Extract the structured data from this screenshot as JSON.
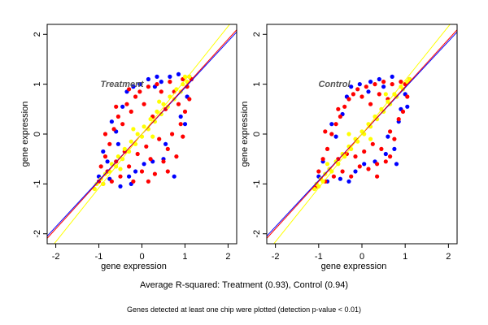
{
  "chart_data": [
    {
      "type": "scatter",
      "title": "Treatment",
      "xlabel": "gene expression",
      "ylabel": "gene expression",
      "xlim": [
        -2.2,
        2.2
      ],
      "ylim": [
        -2.2,
        2.2
      ],
      "xticks": [
        "-2",
        "-1",
        "0",
        "1",
        "2"
      ],
      "yticks": [
        "-2",
        "-1",
        "0",
        "1",
        "2"
      ],
      "grid": false,
      "series": [
        {
          "color": "#0000ff",
          "values": [
            [
              -1.0,
              -0.85
            ],
            [
              -0.8,
              -0.55
            ],
            [
              -0.75,
              -0.9
            ],
            [
              -0.6,
              0.05
            ],
            [
              -0.55,
              -0.2
            ],
            [
              -0.5,
              -1.05
            ],
            [
              -0.45,
              0.55
            ],
            [
              -0.35,
              0.85
            ],
            [
              -0.3,
              -0.85
            ],
            [
              -0.2,
              0.95
            ],
            [
              -0.15,
              -0.75
            ],
            [
              -0.05,
              1.0
            ],
            [
              0.05,
              -0.6
            ],
            [
              0.15,
              1.1
            ],
            [
              0.25,
              -0.55
            ],
            [
              0.35,
              1.15
            ],
            [
              0.5,
              -0.5
            ],
            [
              0.55,
              -0.2
            ],
            [
              0.65,
              1.15
            ],
            [
              0.75,
              -0.85
            ],
            [
              0.85,
              1.2
            ],
            [
              0.9,
              0.35
            ],
            [
              1.0,
              0.2
            ],
            [
              1.05,
              0.75
            ],
            [
              1.1,
              1.15
            ],
            [
              -0.9,
              -0.35
            ],
            [
              -0.7,
              0.25
            ],
            [
              0.45,
              1.05
            ],
            [
              -0.25,
              -1.0
            ],
            [
              0.3,
              0.95
            ]
          ]
        },
        {
          "color": "#ff0000",
          "values": [
            [
              -1.0,
              -0.95
            ],
            [
              -0.95,
              -0.65
            ],
            [
              -0.9,
              -1.0
            ],
            [
              -0.85,
              -0.45
            ],
            [
              -0.8,
              -0.75
            ],
            [
              -0.75,
              -0.2
            ],
            [
              -0.7,
              -0.95
            ],
            [
              -0.65,
              0.1
            ],
            [
              -0.6,
              -0.55
            ],
            [
              -0.55,
              0.35
            ],
            [
              -0.5,
              -0.85
            ],
            [
              -0.45,
              0.2
            ],
            [
              -0.4,
              -0.35
            ],
            [
              -0.35,
              0.6
            ],
            [
              -0.3,
              -0.65
            ],
            [
              -0.25,
              0.45
            ],
            [
              -0.2,
              -0.95
            ],
            [
              -0.15,
              0.75
            ],
            [
              -0.1,
              -0.4
            ],
            [
              -0.05,
              0.85
            ],
            [
              0.0,
              -0.75
            ],
            [
              0.05,
              0.6
            ],
            [
              0.1,
              -0.25
            ],
            [
              0.15,
              0.95
            ],
            [
              0.2,
              -0.5
            ],
            [
              0.25,
              0.35
            ],
            [
              0.3,
              -0.8
            ],
            [
              0.35,
              1.0
            ],
            [
              0.4,
              -0.1
            ],
            [
              0.45,
              0.85
            ],
            [
              0.5,
              -0.55
            ],
            [
              0.55,
              0.5
            ],
            [
              0.6,
              -0.3
            ],
            [
              0.65,
              1.05
            ],
            [
              0.7,
              0.0
            ],
            [
              0.75,
              0.85
            ],
            [
              0.8,
              -0.45
            ],
            [
              0.85,
              0.6
            ],
            [
              0.9,
              0.2
            ],
            [
              0.95,
              1.1
            ],
            [
              1.0,
              0.45
            ],
            [
              1.05,
              0.95
            ],
            [
              1.1,
              0.7
            ],
            [
              1.15,
              1.1
            ],
            [
              -0.6,
              0.55
            ],
            [
              0.15,
              -0.95
            ],
            [
              -0.3,
              0.9
            ],
            [
              0.6,
              -0.75
            ],
            [
              -0.85,
              0.0
            ],
            [
              0.95,
              -0.05
            ]
          ]
        },
        {
          "color": "#ffff00",
          "values": [
            [
              -1.1,
              -1.1
            ],
            [
              -1.05,
              -1.0
            ],
            [
              -0.95,
              -0.9
            ],
            [
              -0.9,
              -1.0
            ],
            [
              -0.85,
              -0.8
            ],
            [
              -0.75,
              -0.75
            ],
            [
              -0.7,
              -0.6
            ],
            [
              -0.6,
              -0.65
            ],
            [
              -0.55,
              -0.45
            ],
            [
              -0.45,
              -0.5
            ],
            [
              -0.4,
              -0.3
            ],
            [
              -0.3,
              -0.35
            ],
            [
              -0.25,
              -0.15
            ],
            [
              -0.15,
              -0.2
            ],
            [
              -0.1,
              0.0
            ],
            [
              0.0,
              -0.05
            ],
            [
              0.05,
              0.15
            ],
            [
              0.15,
              0.1
            ],
            [
              0.2,
              0.3
            ],
            [
              0.3,
              0.25
            ],
            [
              0.35,
              0.45
            ],
            [
              0.45,
              0.4
            ],
            [
              0.5,
              0.6
            ],
            [
              0.6,
              0.55
            ],
            [
              0.65,
              0.75
            ],
            [
              0.75,
              0.7
            ],
            [
              0.8,
              0.9
            ],
            [
              0.9,
              0.85
            ],
            [
              0.95,
              1.0
            ],
            [
              1.05,
              1.05
            ],
            [
              1.1,
              1.15
            ],
            [
              -0.5,
              -0.7
            ],
            [
              0.4,
              0.65
            ],
            [
              -0.2,
              0.1
            ],
            [
              0.25,
              -0.05
            ],
            [
              1.0,
              1.15
            ]
          ]
        }
      ],
      "reference_lines": [
        {
          "color": "#0000ff",
          "slope": 0.93,
          "intercept": 0.0
        },
        {
          "color": "#ff0000",
          "slope": 0.95,
          "intercept": 0.0
        },
        {
          "color": "#ffff00",
          "slope": 1.08,
          "intercept": 0.0
        }
      ]
    },
    {
      "type": "scatter",
      "title": "Control",
      "xlabel": "gene expression",
      "ylabel": "gene expression",
      "xlim": [
        -2.2,
        2.2
      ],
      "ylim": [
        -2.2,
        2.2
      ],
      "xticks": [
        "-2",
        "-1",
        "0",
        "1",
        "2"
      ],
      "yticks": [
        "-2",
        "-1",
        "0",
        "1",
        "2"
      ],
      "grid": false,
      "series": [
        {
          "color": "#0000ff",
          "values": [
            [
              -1.0,
              -0.85
            ],
            [
              -0.9,
              -0.55
            ],
            [
              -0.8,
              -0.95
            ],
            [
              -0.6,
              -0.05
            ],
            [
              -0.5,
              -0.9
            ],
            [
              -0.45,
              0.4
            ],
            [
              -0.35,
              0.75
            ],
            [
              -0.25,
              0.95
            ],
            [
              -0.15,
              -0.75
            ],
            [
              -0.05,
              1.0
            ],
            [
              0.05,
              -0.6
            ],
            [
              0.2,
              1.05
            ],
            [
              0.3,
              -0.55
            ],
            [
              0.4,
              1.1
            ],
            [
              0.55,
              -0.4
            ],
            [
              0.6,
              -0.05
            ],
            [
              0.7,
              1.15
            ],
            [
              0.8,
              -0.6
            ],
            [
              0.85,
              0.25
            ],
            [
              0.9,
              0.5
            ],
            [
              1.0,
              0.8
            ],
            [
              1.05,
              0.55
            ],
            [
              1.1,
              1.1
            ],
            [
              -0.7,
              0.2
            ],
            [
              0.5,
              0.95
            ],
            [
              -0.3,
              -0.95
            ],
            [
              0.15,
              0.85
            ],
            [
              0.75,
              -0.3
            ]
          ]
        },
        {
          "color": "#ff0000",
          "values": [
            [
              -1.05,
              -1.05
            ],
            [
              -1.0,
              -0.75
            ],
            [
              -0.95,
              -0.9
            ],
            [
              -0.9,
              -0.5
            ],
            [
              -0.85,
              -0.95
            ],
            [
              -0.8,
              -0.3
            ],
            [
              -0.75,
              -0.7
            ],
            [
              -0.7,
              0.0
            ],
            [
              -0.65,
              -0.85
            ],
            [
              -0.6,
              0.2
            ],
            [
              -0.55,
              -0.5
            ],
            [
              -0.5,
              0.35
            ],
            [
              -0.45,
              -0.75
            ],
            [
              -0.4,
              0.55
            ],
            [
              -0.35,
              -0.4
            ],
            [
              -0.3,
              0.7
            ],
            [
              -0.25,
              -0.85
            ],
            [
              -0.2,
              0.8
            ],
            [
              -0.15,
              -0.45
            ],
            [
              -0.1,
              0.9
            ],
            [
              -0.05,
              -0.65
            ],
            [
              0.0,
              0.75
            ],
            [
              0.05,
              -0.35
            ],
            [
              0.1,
              0.95
            ],
            [
              0.15,
              -0.7
            ],
            [
              0.2,
              0.6
            ],
            [
              0.25,
              -0.2
            ],
            [
              0.3,
              1.0
            ],
            [
              0.35,
              -0.6
            ],
            [
              0.4,
              0.8
            ],
            [
              0.45,
              -0.3
            ],
            [
              0.5,
              1.05
            ],
            [
              0.55,
              -0.55
            ],
            [
              0.6,
              0.7
            ],
            [
              0.65,
              0.05
            ],
            [
              0.7,
              1.0
            ],
            [
              0.75,
              -0.1
            ],
            [
              0.8,
              0.75
            ],
            [
              0.85,
              0.3
            ],
            [
              0.9,
              1.05
            ],
            [
              0.95,
              0.45
            ],
            [
              1.0,
              1.0
            ],
            [
              1.05,
              0.75
            ],
            [
              1.1,
              1.1
            ],
            [
              -0.55,
              0.5
            ],
            [
              0.35,
              -0.85
            ],
            [
              0.65,
              -0.45
            ],
            [
              -0.85,
              0.05
            ]
          ]
        },
        {
          "color": "#ffff00",
          "values": [
            [
              -1.1,
              -1.1
            ],
            [
              -1.05,
              -1.0
            ],
            [
              -1.0,
              -1.05
            ],
            [
              -0.95,
              -0.9
            ],
            [
              -0.9,
              -0.95
            ],
            [
              -0.85,
              -0.8
            ],
            [
              -0.75,
              -0.7
            ],
            [
              -0.7,
              -0.75
            ],
            [
              -0.6,
              -0.55
            ],
            [
              -0.55,
              -0.6
            ],
            [
              -0.45,
              -0.4
            ],
            [
              -0.4,
              -0.45
            ],
            [
              -0.3,
              -0.25
            ],
            [
              -0.25,
              -0.3
            ],
            [
              -0.15,
              -0.1
            ],
            [
              -0.1,
              -0.15
            ],
            [
              0.0,
              0.05
            ],
            [
              0.05,
              0.0
            ],
            [
              0.15,
              0.2
            ],
            [
              0.2,
              0.15
            ],
            [
              0.3,
              0.35
            ],
            [
              0.35,
              0.3
            ],
            [
              0.45,
              0.5
            ],
            [
              0.5,
              0.45
            ],
            [
              0.6,
              0.65
            ],
            [
              0.65,
              0.6
            ],
            [
              0.75,
              0.8
            ],
            [
              0.8,
              0.75
            ],
            [
              0.9,
              0.95
            ],
            [
              0.95,
              0.9
            ],
            [
              1.05,
              1.05
            ],
            [
              1.1,
              1.1
            ],
            [
              -0.8,
              -0.6
            ],
            [
              -0.3,
              0.0
            ],
            [
              0.2,
              -0.1
            ],
            [
              0.55,
              0.8
            ]
          ]
        }
      ],
      "reference_lines": [
        {
          "color": "#0000ff",
          "slope": 0.93,
          "intercept": 0.0
        },
        {
          "color": "#ff0000",
          "slope": 0.95,
          "intercept": 0.0
        },
        {
          "color": "#ffff00",
          "slope": 1.08,
          "intercept": 0.0
        }
      ]
    }
  ],
  "captions": {
    "main": "Average R-squared: Treatment (0.93), Control (0.94)",
    "sub": "Genes detected at least one chip were plotted (detection p-value < 0.01)"
  }
}
